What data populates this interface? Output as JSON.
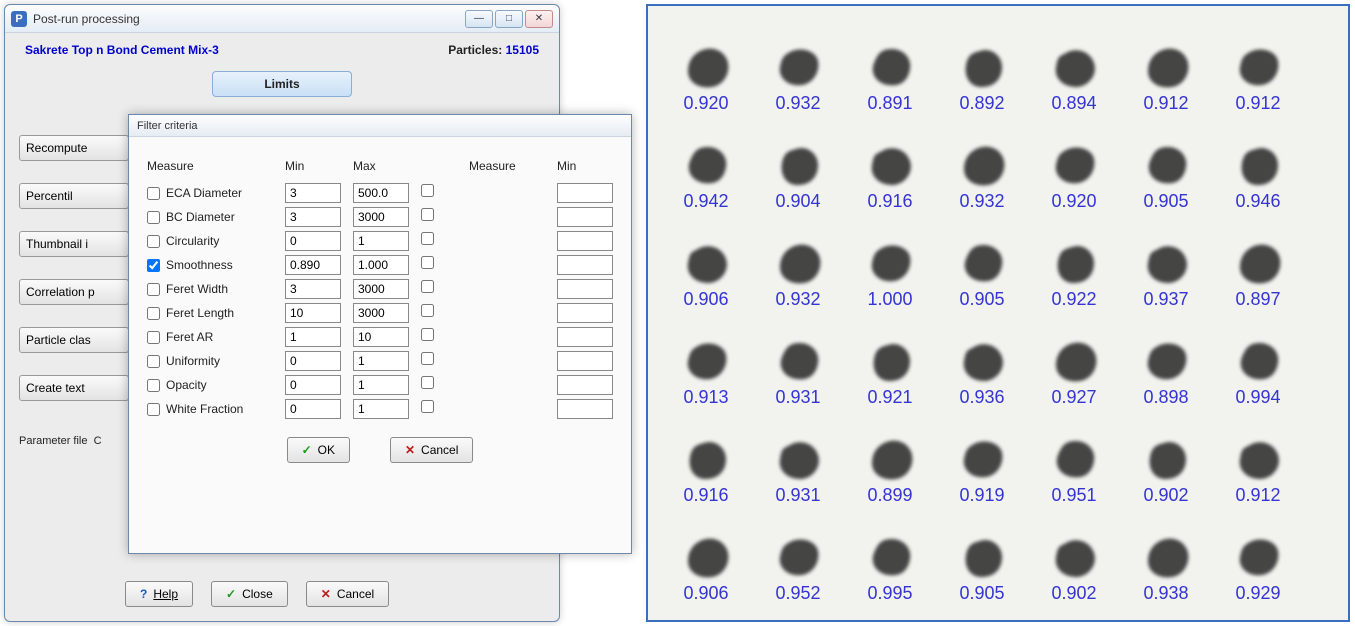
{
  "main_window": {
    "title": "Post-run processing",
    "app_icon_letter": "P",
    "sample_name": "Sakrete Top n Bond Cement Mix-3",
    "particles_label": "Particles:",
    "particles_count": "15105",
    "limits_button": "Limits",
    "side_buttons": [
      "Recompute",
      "Percentil",
      "Thumbnail i",
      "Correlation p",
      "Particle clas",
      "Create text"
    ],
    "param_label": "Parameter file",
    "param_value": "C",
    "bottom": {
      "help": "Help",
      "close": "Close",
      "cancel": "Cancel"
    }
  },
  "filter_window": {
    "title": "Filter criteria",
    "headers": {
      "measure": "Measure",
      "min": "Min",
      "max": "Max",
      "measure2": "Measure",
      "min2": "Min"
    },
    "rows": [
      {
        "label": "ECA Diameter",
        "checked": false,
        "min": "3",
        "max": "500.0"
      },
      {
        "label": "BC Diameter",
        "checked": false,
        "min": "3",
        "max": "3000"
      },
      {
        "label": "Circularity",
        "checked": false,
        "min": "0",
        "max": "1"
      },
      {
        "label": "Smoothness",
        "checked": true,
        "min": "0.890",
        "max": "1.000"
      },
      {
        "label": "Feret Width",
        "checked": false,
        "min": "3",
        "max": "3000"
      },
      {
        "label": "Feret Length",
        "checked": false,
        "min": "10",
        "max": "3000"
      },
      {
        "label": "Feret AR",
        "checked": false,
        "min": "1",
        "max": "10"
      },
      {
        "label": "Uniformity",
        "checked": false,
        "min": "0",
        "max": "1"
      },
      {
        "label": "Opacity",
        "checked": false,
        "min": "0",
        "max": "1"
      },
      {
        "label": "White Fraction",
        "checked": false,
        "min": "0",
        "max": "1"
      }
    ],
    "ok": "OK",
    "cancel": "Cancel"
  },
  "thumbnails": {
    "value_color": "#3434d2",
    "border_color": "#3a6fbf",
    "panel_bg": "#f2f2ee",
    "particle_fill": "#2c2c2c",
    "values": [
      [
        "0.920",
        "0.932",
        "0.891",
        "0.892",
        "0.894",
        "0.912",
        "0.912"
      ],
      [
        "0.942",
        "0.904",
        "0.916",
        "0.932",
        "0.920",
        "0.905",
        "0.946"
      ],
      [
        "0.906",
        "0.932",
        "1.000",
        "0.905",
        "0.922",
        "0.937",
        "0.897"
      ],
      [
        "0.913",
        "0.931",
        "0.921",
        "0.936",
        "0.927",
        "0.898",
        "0.994"
      ],
      [
        "0.916",
        "0.931",
        "0.899",
        "0.919",
        "0.951",
        "0.902",
        "0.912"
      ],
      [
        "0.906",
        "0.952",
        "0.995",
        "0.905",
        "0.902",
        "0.938",
        "0.929"
      ]
    ],
    "cols": 7,
    "rows": 6
  }
}
